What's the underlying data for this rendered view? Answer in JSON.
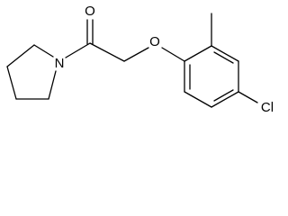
{
  "atoms": [
    {
      "label": "O"
    },
    {
      "label": "N"
    },
    {
      "label": "O"
    },
    {
      "label": "Cl"
    }
  ]
}
